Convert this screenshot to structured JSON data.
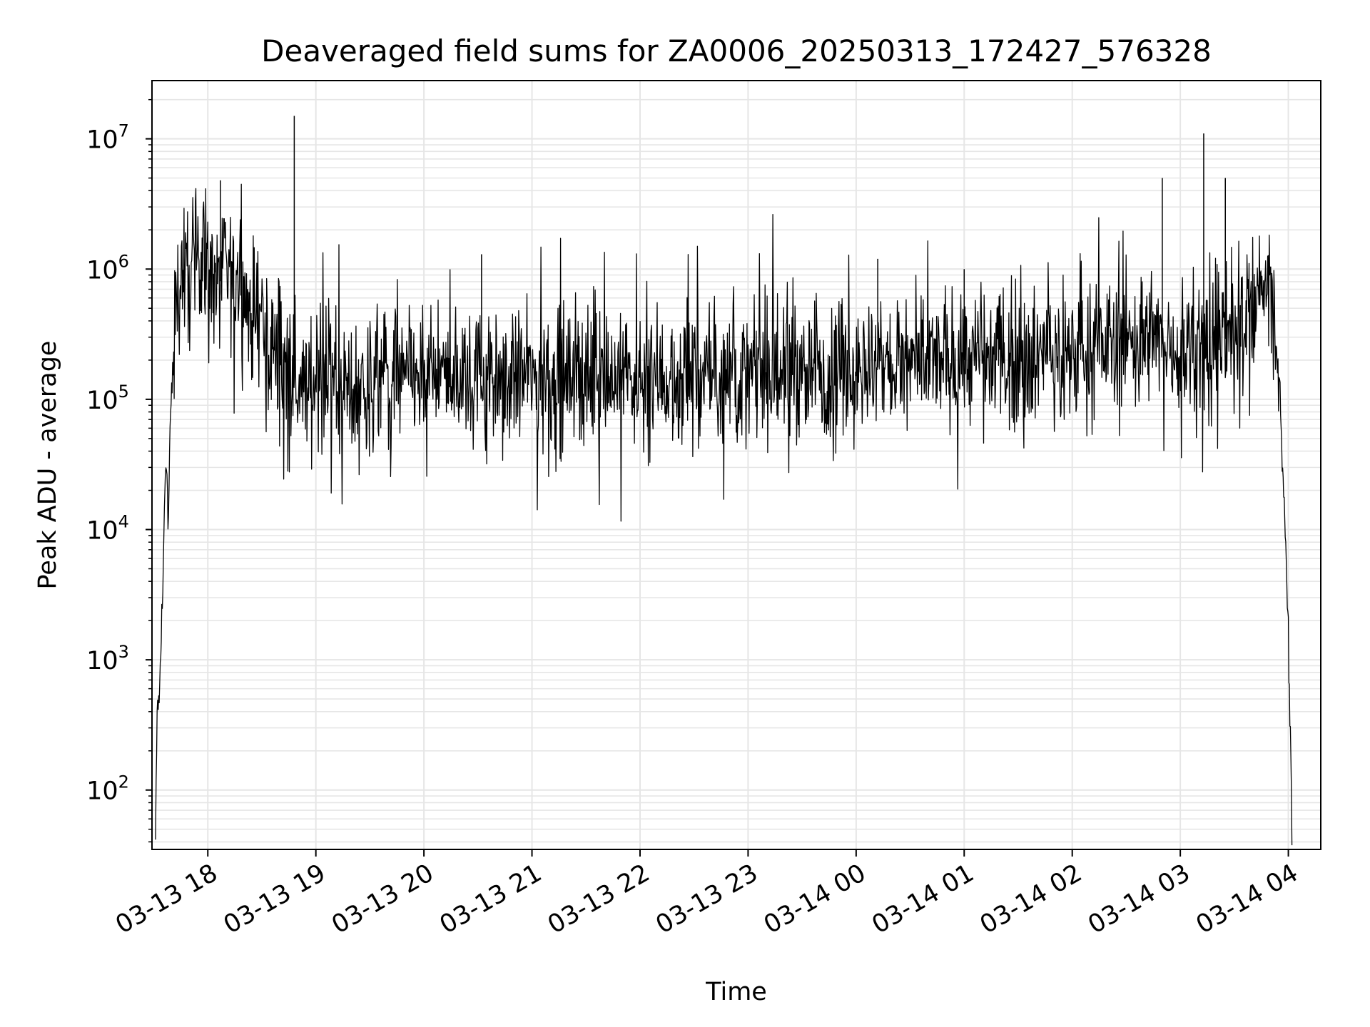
{
  "chart_data": {
    "type": "line",
    "title": "Deaveraged field sums for ZA0006_20250313_172427_576328",
    "xlabel": "Time",
    "ylabel": "Peak ADU - average",
    "yscale": "log",
    "ylim": [
      35,
      28000000
    ],
    "xlim": [
      "2025-03-13T17:29",
      "2025-03-14T04:18"
    ],
    "grid": true,
    "x_ticks": [
      {
        "t": "2025-03-13T18:00",
        "label": "03-13 18"
      },
      {
        "t": "2025-03-13T19:00",
        "label": "03-13 19"
      },
      {
        "t": "2025-03-13T20:00",
        "label": "03-13 20"
      },
      {
        "t": "2025-03-13T21:00",
        "label": "03-13 21"
      },
      {
        "t": "2025-03-13T22:00",
        "label": "03-13 22"
      },
      {
        "t": "2025-03-13T23:00",
        "label": "03-13 23"
      },
      {
        "t": "2025-03-14T00:00",
        "label": "03-14 00"
      },
      {
        "t": "2025-03-14T01:00",
        "label": "03-14 01"
      },
      {
        "t": "2025-03-14T02:00",
        "label": "03-14 02"
      },
      {
        "t": "2025-03-14T03:00",
        "label": "03-14 03"
      },
      {
        "t": "2025-03-14T04:00",
        "label": "03-14 04"
      }
    ],
    "y_ticks": [
      {
        "value": 100,
        "base": "10",
        "exp": "2"
      },
      {
        "value": 1000,
        "base": "10",
        "exp": "3"
      },
      {
        "value": 10000,
        "base": "10",
        "exp": "4"
      },
      {
        "value": 100000,
        "base": "10",
        "exp": "5"
      },
      {
        "value": 1000000,
        "base": "10",
        "exp": "6"
      },
      {
        "value": 10000000,
        "base": "10",
        "exp": "7"
      }
    ],
    "series": [
      {
        "color": "#000000",
        "points": [
          [
            "2025-03-13T17:31",
            40
          ],
          [
            "2025-03-13T17:32",
            480
          ],
          [
            "2025-03-13T17:33",
            450
          ],
          [
            "2025-03-13T17:34",
            1400
          ],
          [
            "2025-03-13T17:35",
            3000
          ],
          [
            "2025-03-13T17:36",
            20000
          ],
          [
            "2025-03-13T17:37",
            45000
          ],
          [
            "2025-03-13T17:38",
            9000
          ],
          [
            "2025-03-13T17:39",
            60000
          ],
          [
            "2025-03-13T17:40",
            100000
          ],
          [
            "2025-03-13T17:42",
            500000
          ],
          [
            "2025-03-13T17:45",
            1000000
          ],
          [
            "2025-03-13T17:50",
            800000
          ],
          [
            "2025-03-13T17:55",
            1500000
          ],
          [
            "2025-03-13T18:00",
            1200000
          ],
          [
            "2025-03-13T18:05",
            700000
          ],
          [
            "2025-03-13T18:10",
            1000000
          ],
          [
            "2025-03-13T18:20",
            600000
          ],
          [
            "2025-03-13T18:30",
            350000
          ],
          [
            "2025-03-13T18:40",
            200000
          ],
          [
            "2025-03-13T18:50",
            150000
          ],
          [
            "2025-03-13T19:00",
            130000
          ],
          [
            "2025-03-13T20:00",
            150000
          ],
          [
            "2025-03-13T21:00",
            150000
          ],
          [
            "2025-03-13T22:00",
            150000
          ],
          [
            "2025-03-13T23:00",
            150000
          ],
          [
            "2025-03-14T00:00",
            170000
          ],
          [
            "2025-03-14T01:00",
            200000
          ],
          [
            "2025-03-14T02:00",
            220000
          ],
          [
            "2025-03-14T02:30",
            300000
          ],
          [
            "2025-03-14T03:00",
            250000
          ],
          [
            "2025-03-14T03:30",
            300000
          ],
          [
            "2025-03-14T03:50",
            800000
          ],
          [
            "2025-03-14T03:55",
            100000
          ],
          [
            "2025-03-14T03:57",
            30000
          ],
          [
            "2025-03-14T03:59",
            5000
          ],
          [
            "2025-03-14T04:00",
            1500
          ],
          [
            "2025-03-14T04:01",
            300
          ],
          [
            "2025-03-14T04:02",
            40
          ]
        ],
        "spikes": [
          [
            "2025-03-13T17:42",
            900000
          ],
          [
            "2025-03-13T18:07",
            4800000
          ],
          [
            "2025-03-13T18:48",
            15000000
          ],
          [
            "2025-03-13T20:32",
            1300000
          ],
          [
            "2025-03-14T00:12",
            1200000
          ],
          [
            "2025-03-14T01:00",
            1000000
          ],
          [
            "2025-03-14T02:50",
            5000000
          ],
          [
            "2025-03-14T03:13",
            11000000
          ],
          [
            "2025-03-14T03:25",
            5000000
          ]
        ]
      }
    ]
  }
}
